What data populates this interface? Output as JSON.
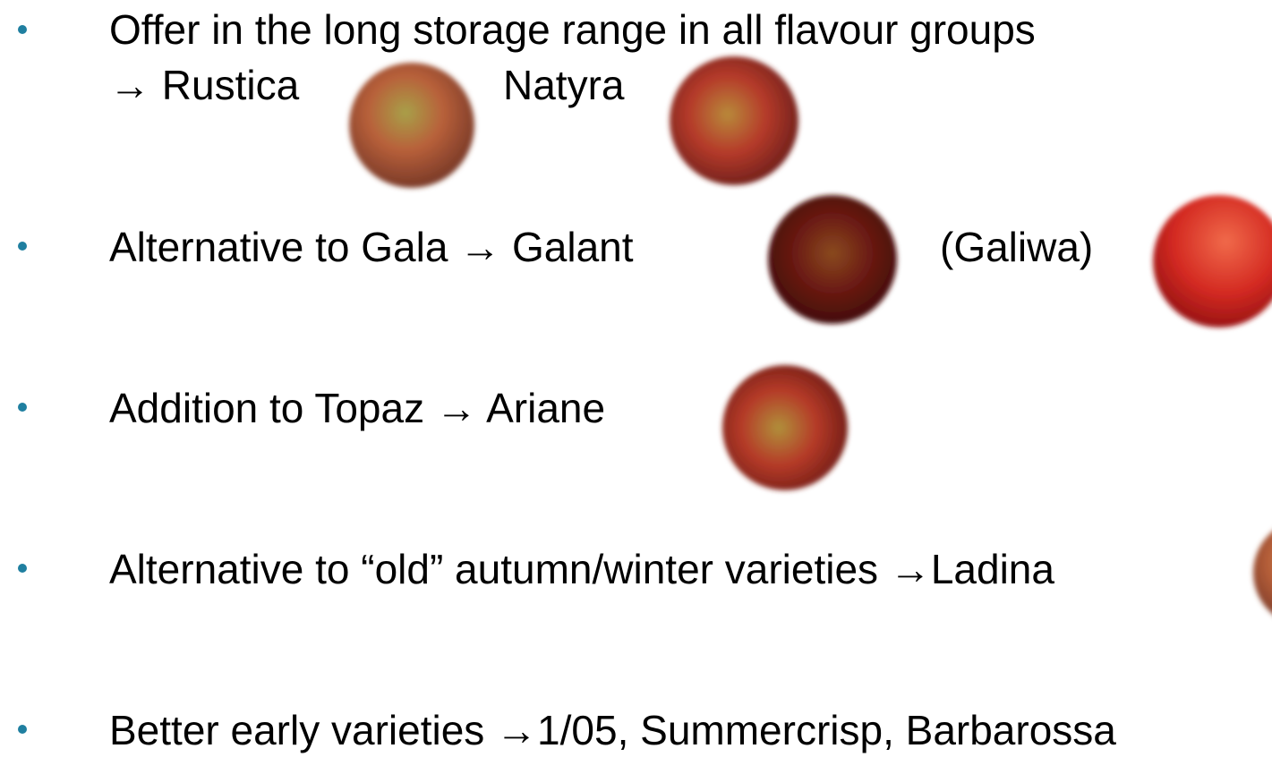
{
  "bullets": [
    {
      "text": "Offer in the long storage range in all flavour groups",
      "varieties": [
        "→ Rustica",
        "Natyra"
      ]
    },
    {
      "text": "Alternative to Gala → Galant",
      "varieties": [
        "(Galiwa)"
      ]
    },
    {
      "text": "Addition to Topaz → Ariane"
    },
    {
      "text": "Alternative to “old” autumn/winter varieties →Ladina"
    },
    {
      "text": "Better early varieties →1/05, Summercrisp, Barbarossa"
    }
  ]
}
